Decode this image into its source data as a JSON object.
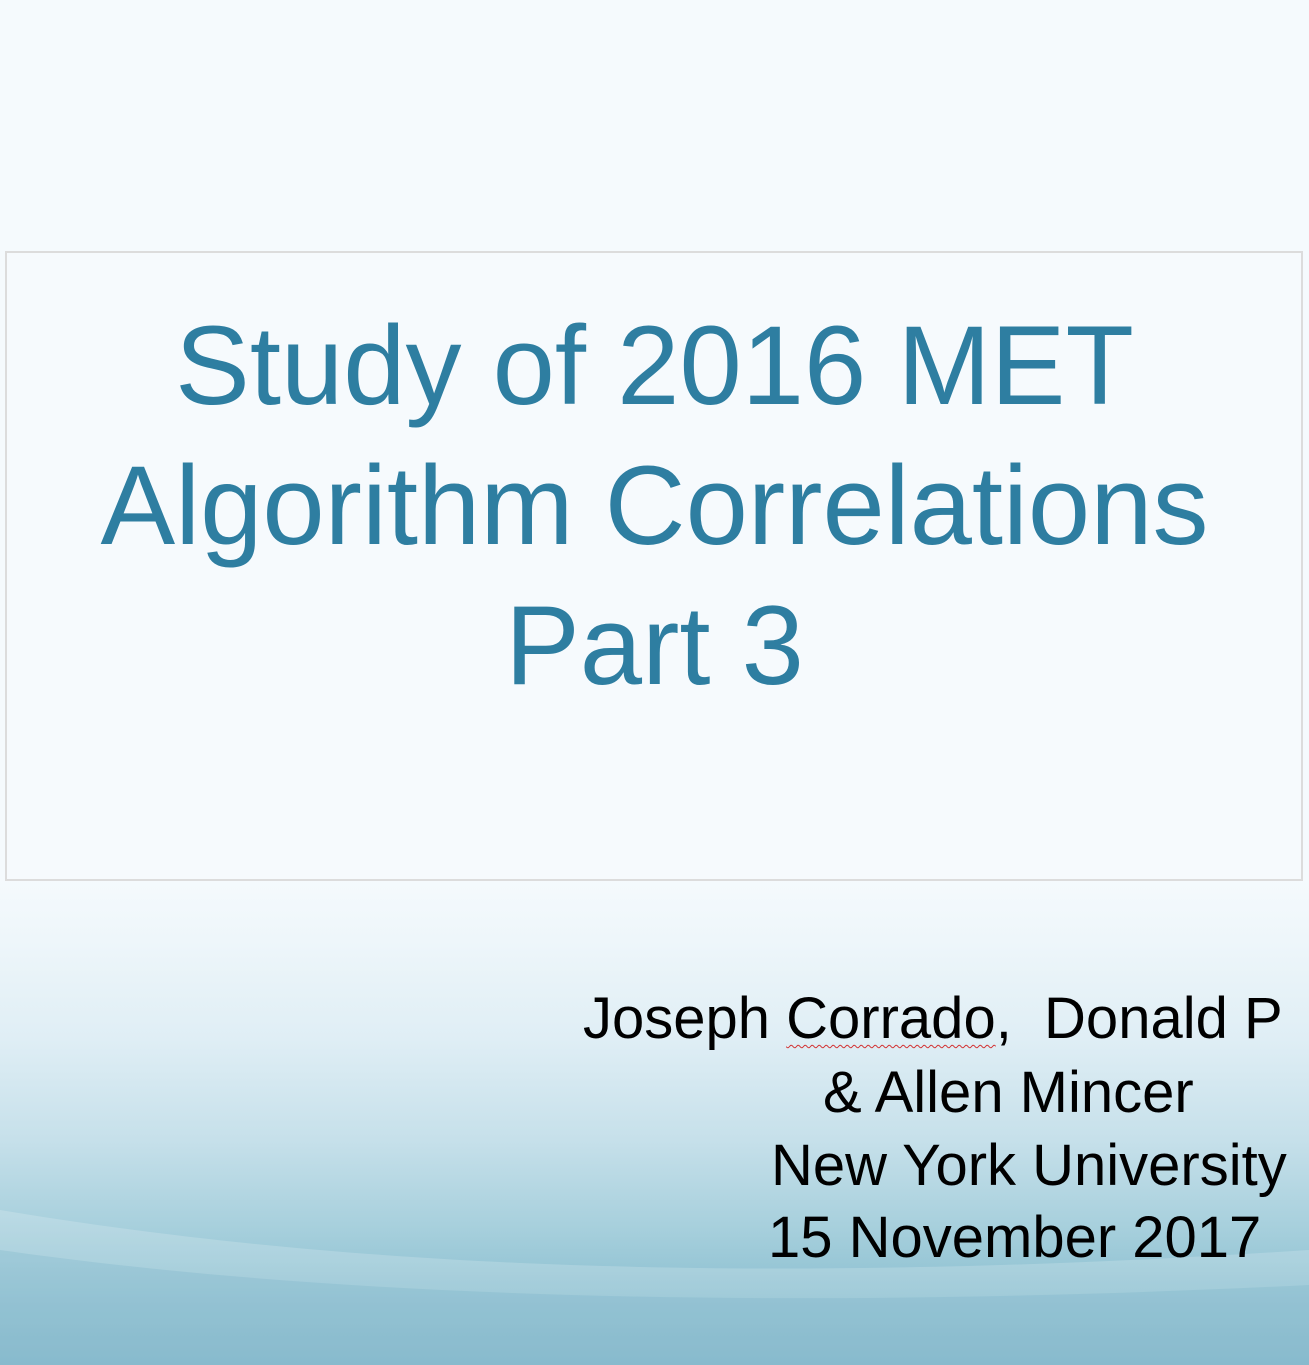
{
  "slide": {
    "title_lines": [
      "Study of 2016 MET",
      "Algorithm Correlations",
      "Part 3"
    ],
    "authors": {
      "author1": "Joseph",
      "author1_surname": "Corrado",
      "separator": ",  ",
      "author2": "Donald P",
      "author3": "& Allen Mincer"
    },
    "institution": "New York University",
    "date": "15 November 2017"
  },
  "colors": {
    "title": "#2e7ea1",
    "subtitle": "#000000",
    "background_top": "#f5fafd",
    "background_bottom": "#7ab3c7"
  }
}
